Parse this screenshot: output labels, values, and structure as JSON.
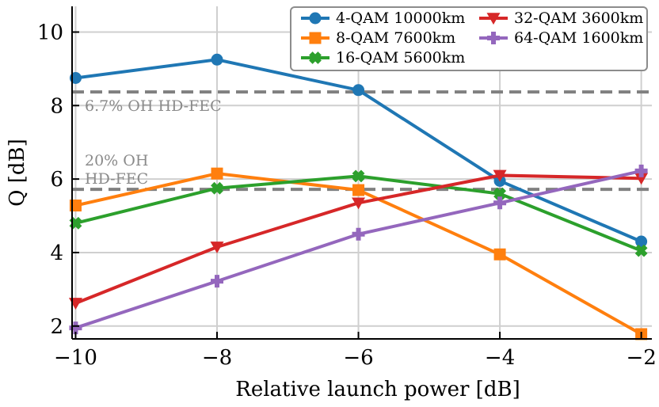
{
  "chart_data": {
    "type": "line",
    "xlabel": "Relative launch power [dB]",
    "ylabel": "Q [dB]",
    "x": [
      -10,
      -8,
      -6,
      -4,
      -2
    ],
    "x_ticks": [
      "−10",
      "−8",
      "−6",
      "−4",
      "−2"
    ],
    "y_ticks": [
      "2",
      "4",
      "6",
      "8",
      "10"
    ],
    "xlim": [
      -10.05,
      -1.85
    ],
    "ylim": [
      1.65,
      10.7
    ],
    "grid": true,
    "legend_position": "top-right",
    "series": [
      {
        "name": "4-QAM 10000km",
        "color": "#1f77b4",
        "marker": "circle",
        "values": [
          8.75,
          9.25,
          8.42,
          5.95,
          4.3
        ]
      },
      {
        "name": "8-QAM 7600km",
        "color": "#ff7f0e",
        "marker": "square",
        "values": [
          5.28,
          6.15,
          5.7,
          3.95,
          1.78
        ]
      },
      {
        "name": "16-QAM 5600km",
        "color": "#2ca02c",
        "marker": "plus",
        "values": [
          4.8,
          5.75,
          6.08,
          5.6,
          4.05
        ]
      },
      {
        "name": "32-QAM 3600km",
        "color": "#d62728",
        "marker": "triangle-down",
        "values": [
          2.62,
          4.15,
          5.35,
          6.1,
          6.02
        ]
      },
      {
        "name": "64-QAM 1600km",
        "color": "#9467bd",
        "marker": "cross",
        "values": [
          1.95,
          3.22,
          4.5,
          5.35,
          6.22
        ]
      }
    ],
    "thresholds": [
      {
        "value": 8.37,
        "label": "6.7% OH HD-FEC"
      },
      {
        "value": 5.72,
        "label_lines": [
          "20% OH",
          "HD-FEC"
        ]
      }
    ]
  }
}
